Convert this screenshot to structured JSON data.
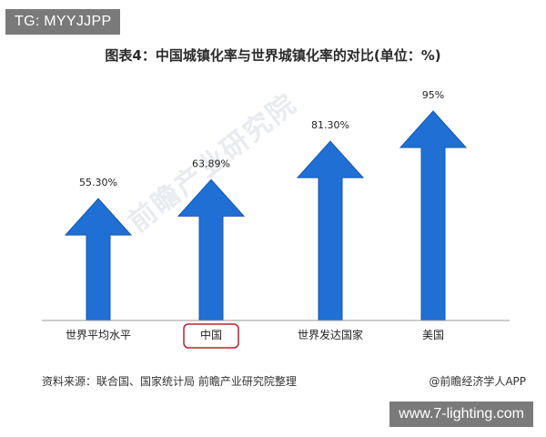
{
  "header": {
    "badge": "TG: MYYJJPP"
  },
  "footer": {
    "source": "资料来源：联合国、国家统计局 前瞻产业研究院整理",
    "credit": "@前瞻经济学人APP",
    "site": "www.7-lighting.com"
  },
  "watermark": {
    "logo_text": "前瞻产业研究院"
  },
  "colors": {
    "arrow": "#1f6fd4",
    "arrow_dark": "#1558b3",
    "highlight_box": "#c0202a",
    "axis": "#9a9a9a"
  },
  "chart_data": {
    "type": "bar",
    "title": "图表4：中国城镇化率与世界城镇化率的对比(单位：%)",
    "categories": [
      "世界平均水平",
      "中国",
      "世界发达国家",
      "美国"
    ],
    "values": [
      55.3,
      63.89,
      81.3,
      95
    ],
    "data_labels": [
      "55.30%",
      "63.89%",
      "81.30%",
      "95%"
    ],
    "highlighted_category": "中国",
    "ylim": [
      0,
      100
    ],
    "xlabel": "",
    "ylabel": "",
    "grid": false,
    "legend": "none"
  }
}
